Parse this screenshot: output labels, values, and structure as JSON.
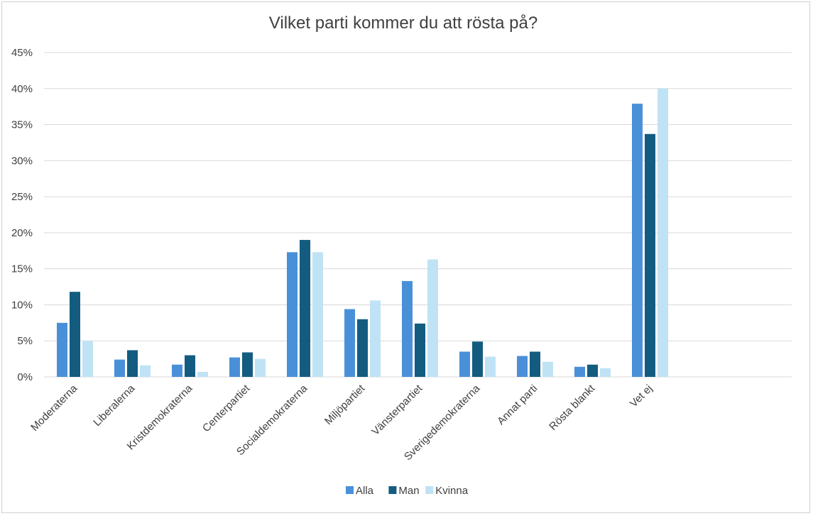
{
  "chart_data": {
    "type": "bar",
    "title": "Vilket parti kommer du att rösta på?",
    "xlabel": "",
    "ylabel": "",
    "ylim": [
      0,
      45
    ],
    "yticks": [
      "0%",
      "5%",
      "10%",
      "15%",
      "20%",
      "25%",
      "30%",
      "35%",
      "40%",
      "45%"
    ],
    "ytick_values": [
      0,
      5,
      10,
      15,
      20,
      25,
      30,
      35,
      40,
      45
    ],
    "grid": true,
    "legend_position": "bottom",
    "categories": [
      "Moderaterna",
      "Liberalerna",
      "Kristdemokraterna",
      "Centerpartiet",
      "Socialdemokraterna",
      "Miljöpartiet",
      "Vänsterpartiet",
      "Sverigedemokraterna",
      "Annat parti",
      "Rösta blankt",
      "Vet ej"
    ],
    "series": [
      {
        "name": "Alla",
        "color": "#4a90d9",
        "values": [
          7.5,
          2.4,
          1.7,
          2.7,
          17.3,
          9.4,
          13.3,
          3.5,
          2.9,
          1.4,
          37.9
        ]
      },
      {
        "name": "Man",
        "color": "#135c80",
        "values": [
          11.8,
          3.7,
          3.0,
          3.4,
          19.0,
          8.0,
          7.4,
          4.9,
          3.5,
          1.7,
          33.7
        ]
      },
      {
        "name": "Kvinna",
        "color": "#bfe3f5",
        "values": [
          5.0,
          1.6,
          0.7,
          2.5,
          17.3,
          10.6,
          16.3,
          2.8,
          2.1,
          1.2,
          40.0
        ]
      }
    ]
  }
}
